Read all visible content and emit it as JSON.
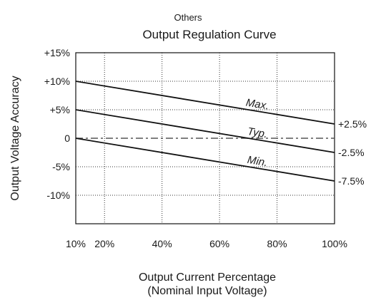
{
  "header": {
    "supertitle": "Others"
  },
  "chart_data": {
    "type": "line",
    "title": "Output Regulation Curve",
    "ylabel": "Output Voltage Accuracy",
    "xlabel_line1": "Output Current Percentage",
    "xlabel_line2": "(Nominal Input Voltage)",
    "xlim": [
      10,
      100
    ],
    "ylim": [
      -15,
      15
    ],
    "grid": true,
    "x_ticks": [
      10,
      20,
      40,
      60,
      80,
      100
    ],
    "x_tick_labels": [
      "10%",
      "20%",
      "40%",
      "60%",
      "80%",
      "100%"
    ],
    "y_ticks": [
      15,
      10,
      5,
      0,
      -5,
      -10
    ],
    "y_tick_labels": [
      "+15%",
      "+10%",
      "+5%",
      "0",
      "-5%",
      "-10%"
    ],
    "series": [
      {
        "name": "Max.",
        "x": [
          10,
          100
        ],
        "y": [
          10,
          2.5
        ],
        "end_label": "+2.5%"
      },
      {
        "name": "Typ.",
        "x": [
          10,
          100
        ],
        "y": [
          5,
          -2.5
        ],
        "end_label": "-2.5%"
      },
      {
        "name": "Min.",
        "x": [
          10,
          100
        ],
        "y": [
          0,
          -7.5
        ],
        "end_label": "-7.5%"
      }
    ],
    "reference_line": {
      "y": 0,
      "style": "dash-dot"
    }
  }
}
